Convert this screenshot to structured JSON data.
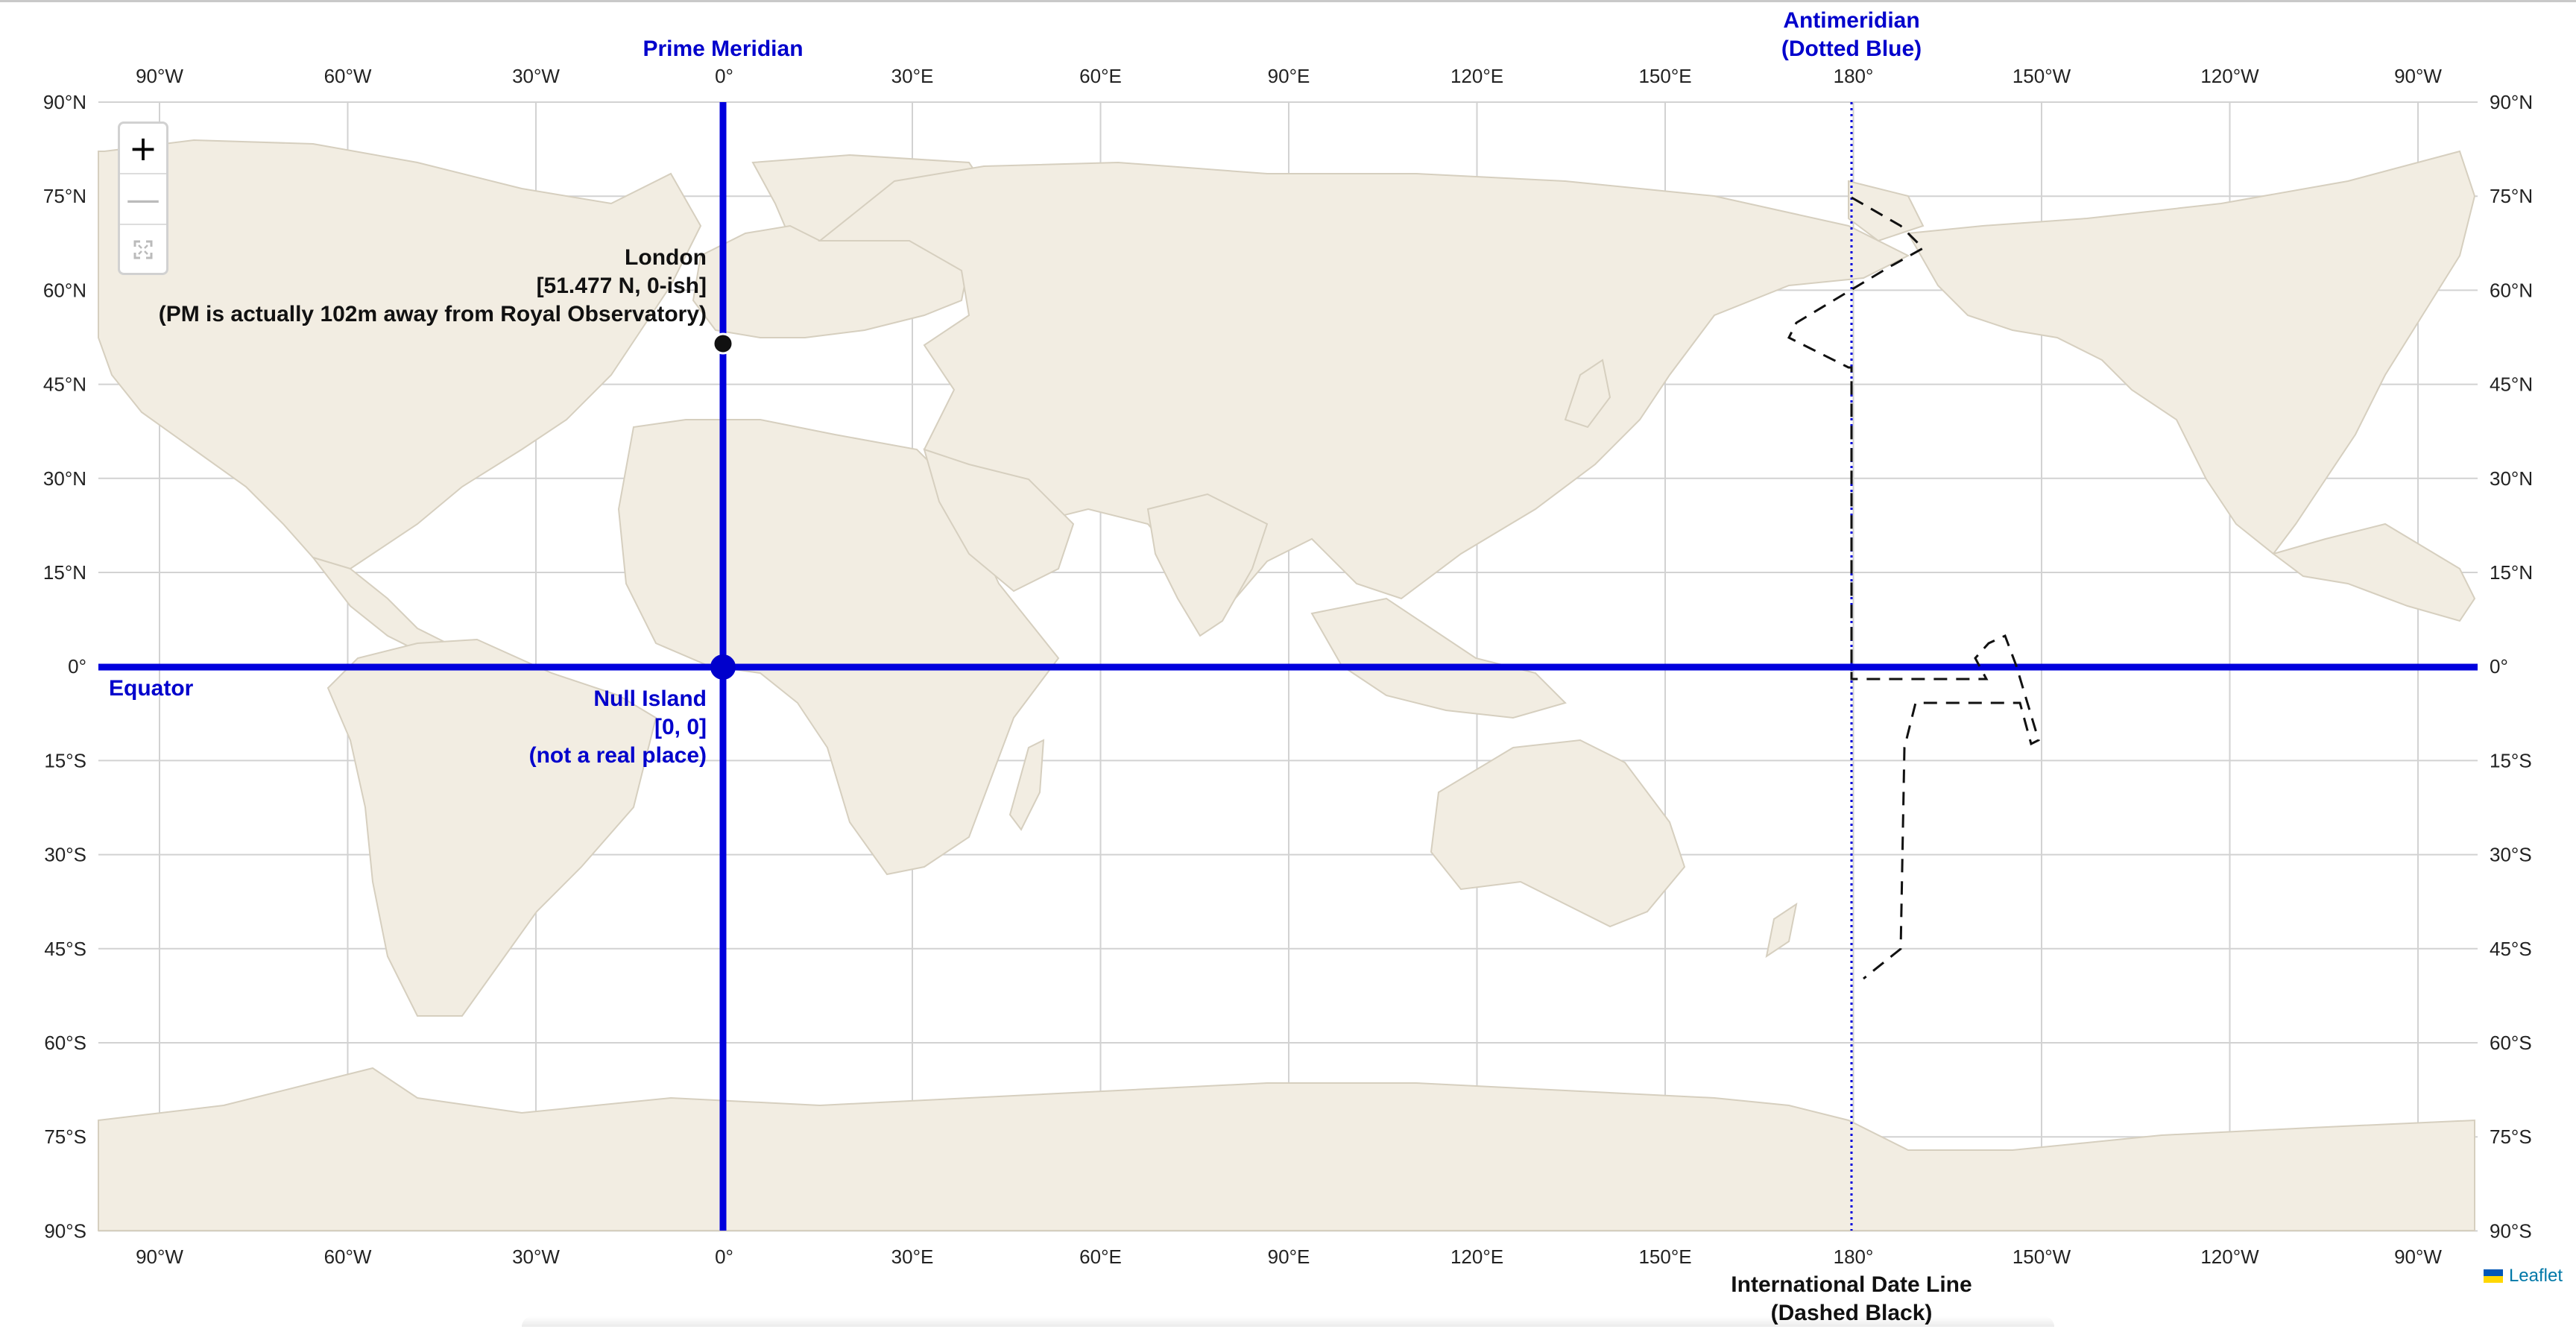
{
  "map": {
    "lon_labels_top": [
      "90°W",
      "60°W",
      "30°W",
      "0°",
      "30°E",
      "60°E",
      "90°E",
      "120°E",
      "150°E",
      "180°",
      "150°W",
      "120°W",
      "90°W"
    ],
    "lon_labels_bottom": [
      "90°W",
      "60°W",
      "30°W",
      "0°",
      "30°E",
      "60°E",
      "90°E",
      "120°E",
      "150°E",
      "180°",
      "150°W",
      "120°W",
      "90°W"
    ],
    "lat_labels": [
      "90°N",
      "75°N",
      "60°N",
      "45°N",
      "30°N",
      "15°N",
      "0°",
      "15°S",
      "30°S",
      "45°S",
      "60°S",
      "75°S",
      "90°S"
    ]
  },
  "lines": {
    "prime_meridian": "Prime Meridian",
    "equator": "Equator",
    "antimeridian_line1": "Antimeridian",
    "antimeridian_line2": "(Dotted Blue)",
    "date_line_line1": "International Date Line",
    "date_line_line2": "(Dashed Black)",
    "primary_color": "#0000dd"
  },
  "markers": {
    "london": {
      "line1": "London",
      "line2": "[51.477 N, 0-ish]",
      "line3": "(PM is actually 102m away from Royal Observatory)"
    },
    "null_island": {
      "line1": "Null Island",
      "line2": "[0, 0]",
      "line3": "(not a real place)"
    }
  },
  "controls": {
    "zoom_in": "+",
    "zoom_out": "—",
    "fullscreen_icon": "fullscreen-icon"
  },
  "attribution": {
    "text": "Leaflet"
  }
}
